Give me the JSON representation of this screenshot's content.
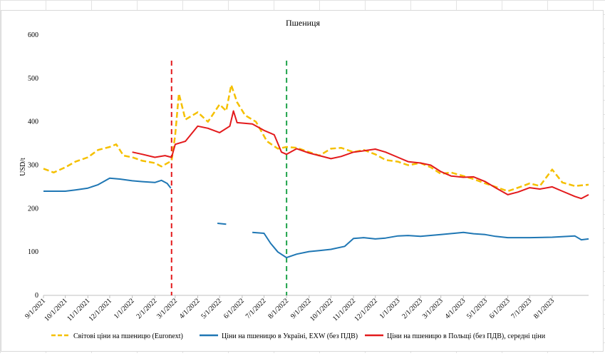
{
  "chart_data": {
    "type": "line",
    "title": "Пшениця",
    "ylabel": "USD/t",
    "xlabel": "",
    "ylim": [
      0,
      600
    ],
    "yticks": [
      "0",
      "100",
      "200",
      "300",
      "400",
      "500",
      "600"
    ],
    "xticks": [
      "9/1/2021",
      "10/1/2021",
      "11/1/2021",
      "12/1/2021",
      "1/1/2022",
      "2/1/2022",
      "3/1/2022",
      "4/1/2022",
      "5/1/2022",
      "6/1/2022",
      "7/1/2022",
      "8/1/2022",
      "9/1/2022",
      "10/1/2022",
      "11/1/2022",
      "12/1/2022",
      "1/1/2023",
      "2/1/2023",
      "3/1/2023",
      "4/1/2023",
      "5/1/2023",
      "6/1/2023",
      "7/1/2023",
      "8/1/2023"
    ],
    "x_range": [
      "2021-09-01",
      "2023-09-20"
    ],
    "grid": false,
    "legend_position": "bottom",
    "vertical_lines": [
      {
        "date": "2022-02-24",
        "color": "#e31a1c",
        "style": "dashed"
      },
      {
        "date": "2022-08-01",
        "color": "#1fa34a",
        "style": "dashed"
      }
    ],
    "series": [
      {
        "name": "Світові ціни на пшеницю (Euronext)",
        "color": "#f5c000",
        "style": "dashed",
        "points": [
          [
            "2021-09-01",
            292
          ],
          [
            "2021-09-15",
            283
          ],
          [
            "2021-10-01",
            295
          ],
          [
            "2021-10-15",
            308
          ],
          [
            "2021-11-01",
            318
          ],
          [
            "2021-11-15",
            335
          ],
          [
            "2021-12-01",
            342
          ],
          [
            "2021-12-10",
            348
          ],
          [
            "2021-12-20",
            322
          ],
          [
            "2022-01-01",
            318
          ],
          [
            "2022-01-15",
            310
          ],
          [
            "2022-02-01",
            305
          ],
          [
            "2022-02-10",
            297
          ],
          [
            "2022-02-24",
            310
          ],
          [
            "2022-03-01",
            370
          ],
          [
            "2022-03-06",
            465
          ],
          [
            "2022-03-15",
            405
          ],
          [
            "2022-04-01",
            422
          ],
          [
            "2022-04-15",
            400
          ],
          [
            "2022-05-01",
            440
          ],
          [
            "2022-05-10",
            425
          ],
          [
            "2022-05-17",
            485
          ],
          [
            "2022-05-25",
            445
          ],
          [
            "2022-06-05",
            415
          ],
          [
            "2022-06-20",
            400
          ],
          [
            "2022-07-05",
            355
          ],
          [
            "2022-07-20",
            338
          ],
          [
            "2022-08-01",
            342
          ],
          [
            "2022-08-15",
            340
          ],
          [
            "2022-09-01",
            330
          ],
          [
            "2022-09-15",
            322
          ],
          [
            "2022-10-01",
            338
          ],
          [
            "2022-10-15",
            340
          ],
          [
            "2022-11-01",
            330
          ],
          [
            "2022-11-15",
            335
          ],
          [
            "2022-12-01",
            325
          ],
          [
            "2022-12-15",
            312
          ],
          [
            "2023-01-01",
            308
          ],
          [
            "2023-01-15",
            300
          ],
          [
            "2023-02-01",
            305
          ],
          [
            "2023-02-15",
            295
          ],
          [
            "2023-03-01",
            280
          ],
          [
            "2023-03-15",
            283
          ],
          [
            "2023-04-01",
            275
          ],
          [
            "2023-04-15",
            268
          ],
          [
            "2023-05-01",
            258
          ],
          [
            "2023-05-15",
            250
          ],
          [
            "2023-06-01",
            240
          ],
          [
            "2023-06-15",
            248
          ],
          [
            "2023-07-01",
            258
          ],
          [
            "2023-07-15",
            252
          ],
          [
            "2023-08-01",
            290
          ],
          [
            "2023-08-15",
            260
          ],
          [
            "2023-09-01",
            252
          ],
          [
            "2023-09-20",
            255
          ]
        ]
      },
      {
        "name": "Ціни на пшеницю в Україні, EXW (без ПДВ)",
        "color": "#1f77b4",
        "style": "solid",
        "segments": [
          [
            [
              "2021-09-01",
              240
            ],
            [
              "2021-10-01",
              240
            ],
            [
              "2021-10-15",
              243
            ],
            [
              "2021-11-01",
              247
            ],
            [
              "2021-11-15",
              255
            ],
            [
              "2021-12-01",
              270
            ],
            [
              "2021-12-15",
              268
            ],
            [
              "2022-01-01",
              264
            ],
            [
              "2022-01-15",
              262
            ],
            [
              "2022-02-01",
              260
            ],
            [
              "2022-02-10",
              265
            ],
            [
              "2022-02-18",
              258
            ],
            [
              "2022-02-23",
              247
            ]
          ],
          [
            [
              "2022-04-28",
              166
            ],
            [
              "2022-05-10",
              164
            ]
          ],
          [
            [
              "2022-06-15",
              145
            ],
            [
              "2022-07-01",
              143
            ],
            [
              "2022-07-10",
              120
            ],
            [
              "2022-07-20",
              100
            ],
            [
              "2022-08-01",
              87
            ],
            [
              "2022-08-15",
              95
            ],
            [
              "2022-09-01",
              101
            ],
            [
              "2022-09-15",
              103
            ],
            [
              "2022-10-01",
              106
            ],
            [
              "2022-10-20",
              113
            ],
            [
              "2022-11-01",
              131
            ],
            [
              "2022-11-15",
              133
            ],
            [
              "2022-12-01",
              130
            ],
            [
              "2022-12-15",
              132
            ],
            [
              "2023-01-01",
              137
            ],
            [
              "2023-01-15",
              138
            ],
            [
              "2023-02-01",
              136
            ],
            [
              "2023-03-01",
              140
            ],
            [
              "2023-04-01",
              145
            ],
            [
              "2023-04-15",
              142
            ],
            [
              "2023-05-01",
              140
            ],
            [
              "2023-05-15",
              136
            ],
            [
              "2023-06-01",
              133
            ],
            [
              "2023-07-01",
              133
            ],
            [
              "2023-08-01",
              134
            ],
            [
              "2023-09-01",
              137
            ],
            [
              "2023-09-10",
              128
            ],
            [
              "2023-09-20",
              130
            ]
          ]
        ]
      },
      {
        "name": "Ціни на пшеницю в Польщі (без ПДВ), середні ціни",
        "color": "#e31a1c",
        "style": "solid",
        "points": [
          [
            "2022-01-01",
            330
          ],
          [
            "2022-01-15",
            325
          ],
          [
            "2022-02-01",
            318
          ],
          [
            "2022-02-15",
            322
          ],
          [
            "2022-02-24",
            318
          ],
          [
            "2022-03-01",
            348
          ],
          [
            "2022-03-15",
            355
          ],
          [
            "2022-04-01",
            390
          ],
          [
            "2022-04-15",
            385
          ],
          [
            "2022-05-01",
            375
          ],
          [
            "2022-05-15",
            390
          ],
          [
            "2022-05-20",
            425
          ],
          [
            "2022-05-25",
            398
          ],
          [
            "2022-06-15",
            395
          ],
          [
            "2022-07-01",
            380
          ],
          [
            "2022-07-15",
            370
          ],
          [
            "2022-07-25",
            330
          ],
          [
            "2022-08-01",
            325
          ],
          [
            "2022-08-15",
            338
          ],
          [
            "2022-09-01",
            328
          ],
          [
            "2022-09-15",
            322
          ],
          [
            "2022-10-01",
            315
          ],
          [
            "2022-10-15",
            320
          ],
          [
            "2022-11-01",
            330
          ],
          [
            "2022-11-15",
            333
          ],
          [
            "2022-12-01",
            337
          ],
          [
            "2022-12-15",
            330
          ],
          [
            "2023-01-01",
            318
          ],
          [
            "2023-01-15",
            308
          ],
          [
            "2023-02-01",
            305
          ],
          [
            "2023-02-15",
            300
          ],
          [
            "2023-03-01",
            285
          ],
          [
            "2023-03-15",
            275
          ],
          [
            "2023-04-01",
            272
          ],
          [
            "2023-04-15",
            273
          ],
          [
            "2023-05-01",
            262
          ],
          [
            "2023-05-15",
            248
          ],
          [
            "2023-06-01",
            232
          ],
          [
            "2023-06-15",
            238
          ],
          [
            "2023-07-01",
            248
          ],
          [
            "2023-07-15",
            245
          ],
          [
            "2023-08-01",
            250
          ],
          [
            "2023-08-15",
            240
          ],
          [
            "2023-09-01",
            228
          ],
          [
            "2023-09-10",
            223
          ],
          [
            "2023-09-20",
            232
          ]
        ]
      }
    ]
  }
}
